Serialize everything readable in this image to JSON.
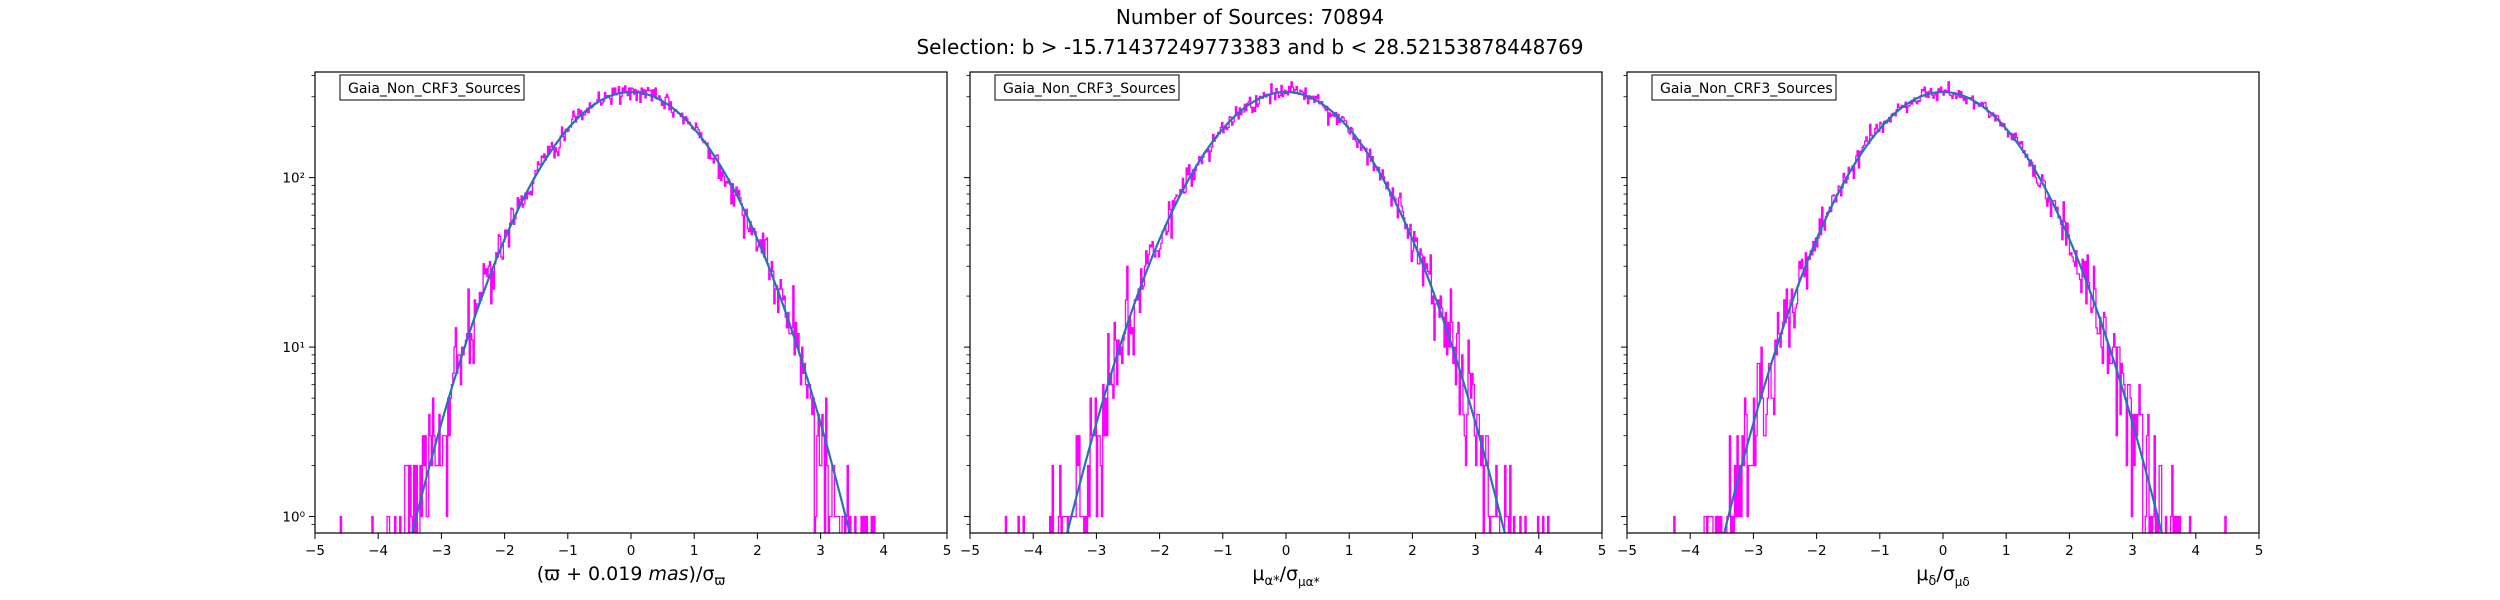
{
  "figure": {
    "title_line1": "Number of Sources: 70894",
    "title_line2": "Selection: b > -15.71437249773383 and b < 28.52153878448769"
  },
  "colors": {
    "histogram": "#ff00ff",
    "fit": "#1f77b4",
    "axes": "#000000"
  },
  "chart_data": [
    {
      "type": "line",
      "legend": "Gaia_Non_CRF3_Sources",
      "legend_position": "top-left",
      "xlabel_parts": [
        "(ϖ + 0.019 ",
        "mas",
        ")/σ",
        "ϖ"
      ],
      "yscale": "log",
      "xlim": [
        -5,
        5
      ],
      "ylim": [
        0.8,
        420
      ],
      "xticks": [
        "−5",
        "−4",
        "−3",
        "−2",
        "−1",
        "0",
        "1",
        "2",
        "3",
        "4",
        "5"
      ],
      "yticks": [
        {
          "value": 1,
          "label": "10⁰"
        },
        {
          "value": 10,
          "label": "10¹"
        },
        {
          "value": 100,
          "label": "10²"
        }
      ],
      "series": [
        {
          "kind": "histogram",
          "bin_width": 0.02,
          "peak": 320,
          "sigma": 1.0,
          "x_range": [
            -5,
            4.6
          ]
        },
        {
          "kind": "gaussian-fit",
          "peak": 320,
          "mean": 0.0,
          "sigma": 1.0
        }
      ]
    },
    {
      "type": "line",
      "legend": "Gaia_Non_CRF3_Sources",
      "legend_position": "top-left",
      "xlabel_parts": [
        "μ",
        "α*",
        "/σ",
        "μα*"
      ],
      "yscale": "log",
      "xlim": [
        -5,
        5
      ],
      "ylim": [
        0.8,
        420
      ],
      "xticks": [
        "−5",
        "−4",
        "−3",
        "−2",
        "−1",
        "0",
        "1",
        "2",
        "3",
        "4",
        "5"
      ],
      "yticks": [
        {
          "value": 1,
          "label": ""
        },
        {
          "value": 10,
          "label": ""
        },
        {
          "value": 100,
          "label": ""
        }
      ],
      "series": [
        {
          "kind": "histogram",
          "bin_width": 0.02,
          "peak": 320,
          "sigma": 1.0,
          "x_range": [
            -4.7,
            5
          ]
        },
        {
          "kind": "gaussian-fit",
          "peak": 320,
          "mean": 0.0,
          "sigma": 1.0
        }
      ]
    },
    {
      "type": "line",
      "legend": "Gaia_Non_CRF3_Sources",
      "legend_position": "top-left",
      "xlabel_parts": [
        "μ",
        "δ",
        "/σ",
        "μδ"
      ],
      "yscale": "log",
      "xlim": [
        -5,
        5
      ],
      "ylim": [
        0.8,
        420
      ],
      "xticks": [
        "−5",
        "−4",
        "−3",
        "−2",
        "−1",
        "0",
        "1",
        "2",
        "3",
        "4",
        "5"
      ],
      "yticks": [
        {
          "value": 1,
          "label": ""
        },
        {
          "value": 10,
          "label": ""
        },
        {
          "value": 100,
          "label": ""
        }
      ],
      "series": [
        {
          "kind": "histogram",
          "bin_width": 0.02,
          "peak": 320,
          "sigma": 1.0,
          "x_range": [
            -5,
            4.8
          ]
        },
        {
          "kind": "gaussian-fit",
          "peak": 320,
          "mean": 0.0,
          "sigma": 1.0
        }
      ]
    }
  ]
}
